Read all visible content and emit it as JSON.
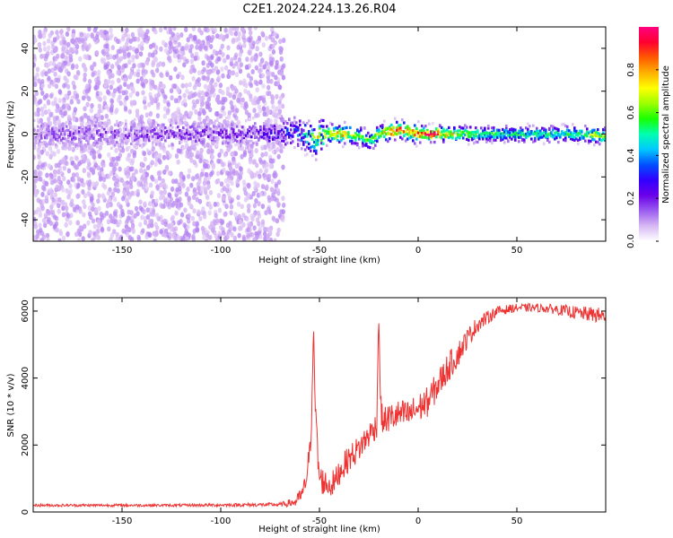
{
  "title": "C2E1.2024.224.13.26.R04",
  "chart_data": [
    {
      "type": "heatmap",
      "xlabel": "Height of straight line (km)",
      "ylabel": "Frequency (Hz)",
      "xlim": [
        -195,
        95
      ],
      "ylim": [
        -50,
        50
      ],
      "x_ticks": [
        -150,
        -100,
        -50,
        0,
        50
      ],
      "y_ticks": [
        -40,
        -20,
        0,
        20,
        40
      ],
      "colorbar": {
        "label": "Normalized spectral amplitude",
        "range": [
          0,
          1
        ],
        "ticks": [
          0.0,
          0.2,
          0.4,
          0.6,
          0.8
        ],
        "colors": [
          "#ffffff",
          "#d7b8f3",
          "#9b5cf0",
          "#6a00e8",
          "#3100ff",
          "#0050ff",
          "#00c8ff",
          "#00ffb0",
          "#1aff00",
          "#9cff00",
          "#ffff00",
          "#ffb000",
          "#ff5a00",
          "#ff0030",
          "#ff0080"
        ]
      },
      "signal_ridge": {
        "x": [
          -195,
          -90,
          -70,
          -60,
          -55,
          -52,
          -50,
          -45,
          -40,
          -35,
          -30,
          -25,
          -20,
          -15,
          -10,
          -5,
          0,
          10,
          20,
          40,
          60,
          80,
          95
        ],
        "frequency": [
          0,
          0,
          0,
          1,
          -2,
          -3,
          0,
          0,
          0,
          0,
          -1,
          -3,
          0,
          1,
          2,
          1,
          0,
          0,
          0,
          0,
          0,
          0,
          -1
        ],
        "amplitude": [
          0.12,
          0.15,
          0.22,
          0.35,
          0.45,
          0.5,
          0.6,
          0.7,
          0.75,
          0.72,
          0.6,
          0.55,
          0.7,
          0.8,
          0.85,
          0.75,
          0.85,
          0.9,
          0.6,
          0.5,
          0.5,
          0.55,
          0.7
        ]
      },
      "noise_floor_region": {
        "x_from": -195,
        "x_to": -68,
        "amplitude": 0.05
      }
    },
    {
      "type": "line",
      "xlabel": "Height of straight line (km)",
      "ylabel": "SNR (10 * v/v)",
      "xlim": [
        -195,
        95
      ],
      "ylim": [
        0,
        6400
      ],
      "x_ticks": [
        -150,
        -100,
        -50,
        0,
        50
      ],
      "y_ticks": [
        0,
        2000,
        4000,
        6000
      ],
      "series": [
        {
          "color": "#ee3333",
          "x": [
            -195,
            -120,
            -70,
            -62,
            -58,
            -55,
            -54,
            -53,
            -52,
            -51,
            -50,
            -48,
            -45,
            -42,
            -40,
            -35,
            -30,
            -25,
            -21,
            -20,
            -19,
            -18,
            -15,
            -10,
            -5,
            0,
            5,
            10,
            15,
            20,
            25,
            30,
            35,
            40,
            50,
            60,
            70,
            80,
            95
          ],
          "y": [
            200,
            200,
            220,
            300,
            600,
            1600,
            3000,
            5600,
            2800,
            1800,
            1000,
            900,
            800,
            900,
            1200,
            1600,
            1900,
            2300,
            2600,
            5900,
            3200,
            2700,
            2800,
            2900,
            2900,
            3100,
            3300,
            3800,
            4300,
            4700,
            5200,
            5600,
            5800,
            6000,
            6100,
            6100,
            6050,
            5950,
            5850
          ],
          "noise_amplitude": [
            40,
            40,
            60,
            150,
            300,
            500,
            600,
            0,
            600,
            600,
            500,
            400,
            400,
            400,
            400,
            400,
            400,
            400,
            400,
            0,
            400,
            400,
            450,
            450,
            450,
            450,
            450,
            450,
            450,
            400,
            300,
            250,
            200,
            150,
            120,
            120,
            150,
            200,
            250
          ]
        }
      ]
    }
  ]
}
